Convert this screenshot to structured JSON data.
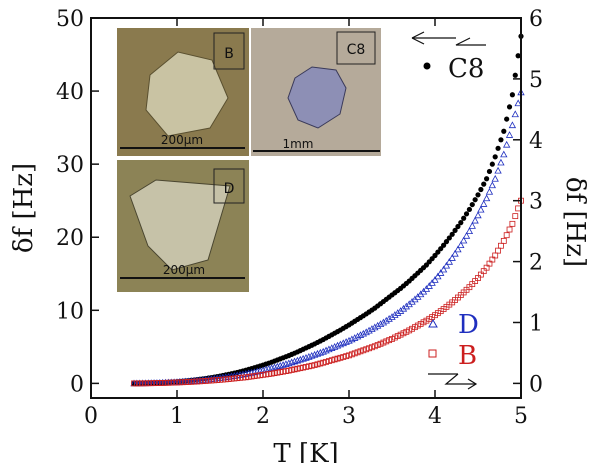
{
  "chart_data": {
    "type": "scatter",
    "title": "",
    "xlabel": "T [K]",
    "ylabel_left": "δf [Hz]",
    "ylabel_right": "δf [Hz]",
    "xlim": [
      0,
      5
    ],
    "ylim_left": [
      -2,
      50
    ],
    "ylim_right": [
      -0.24,
      6
    ],
    "xticks": [
      "0",
      "1",
      "2",
      "3",
      "4",
      "5"
    ],
    "yticks_left": [
      "0",
      "10",
      "20",
      "30",
      "40",
      "50"
    ],
    "yticks_right": [
      "0",
      "1",
      "2",
      "3",
      "4",
      "5",
      "6"
    ],
    "grid": false,
    "legend": [
      {
        "name": "C8",
        "color": "#000000",
        "marker": "circle",
        "axis": "left"
      },
      {
        "name": "D",
        "color": "#1f2fbf",
        "marker": "triangle",
        "axis": "right"
      },
      {
        "name": "B",
        "color": "#cc1f1f",
        "marker": "square",
        "axis": "right"
      }
    ],
    "series": [
      {
        "name": "C8",
        "axis": "left",
        "color": "#000000",
        "marker": "circle",
        "points": [
          [
            0.5,
            0.0
          ],
          [
            0.6,
            0.02
          ],
          [
            0.7,
            0.05
          ],
          [
            0.8,
            0.1
          ],
          [
            0.9,
            0.16
          ],
          [
            1.0,
            0.24
          ],
          [
            1.1,
            0.34
          ],
          [
            1.2,
            0.47
          ],
          [
            1.3,
            0.62
          ],
          [
            1.4,
            0.8
          ],
          [
            1.5,
            1.0
          ],
          [
            1.6,
            1.24
          ],
          [
            1.7,
            1.5
          ],
          [
            1.8,
            1.8
          ],
          [
            1.9,
            2.14
          ],
          [
            2.0,
            2.5
          ],
          [
            2.1,
            2.9
          ],
          [
            2.2,
            3.35
          ],
          [
            2.3,
            3.8
          ],
          [
            2.4,
            4.3
          ],
          [
            2.5,
            4.85
          ],
          [
            2.6,
            5.4
          ],
          [
            2.7,
            6.0
          ],
          [
            2.8,
            6.65
          ],
          [
            2.9,
            7.3
          ],
          [
            3.0,
            8.0
          ],
          [
            3.1,
            8.75
          ],
          [
            3.2,
            9.5
          ],
          [
            3.3,
            10.3
          ],
          [
            3.4,
            11.2
          ],
          [
            3.5,
            12.1
          ],
          [
            3.6,
            13.0
          ],
          [
            3.7,
            14.0
          ],
          [
            3.8,
            15.1
          ],
          [
            3.9,
            16.2
          ],
          [
            4.0,
            17.5
          ],
          [
            4.1,
            18.9
          ],
          [
            4.2,
            20.4
          ],
          [
            4.3,
            22.0
          ],
          [
            4.4,
            23.8
          ],
          [
            4.5,
            25.8
          ],
          [
            4.6,
            28.0
          ],
          [
            4.7,
            31.0
          ],
          [
            4.8,
            34.5
          ],
          [
            4.9,
            39.5
          ],
          [
            5.0,
            47.5
          ]
        ]
      },
      {
        "name": "D",
        "axis": "right",
        "color": "#1f2fbf",
        "marker": "triangle",
        "points": [
          [
            0.5,
            0.0
          ],
          [
            0.6,
            0.002
          ],
          [
            0.7,
            0.005
          ],
          [
            0.8,
            0.009
          ],
          [
            0.9,
            0.015
          ],
          [
            1.0,
            0.022
          ],
          [
            1.1,
            0.031
          ],
          [
            1.2,
            0.042
          ],
          [
            1.3,
            0.055
          ],
          [
            1.4,
            0.07
          ],
          [
            1.5,
            0.088
          ],
          [
            1.6,
            0.108
          ],
          [
            1.7,
            0.13
          ],
          [
            1.8,
            0.155
          ],
          [
            1.9,
            0.183
          ],
          [
            2.0,
            0.215
          ],
          [
            2.1,
            0.25
          ],
          [
            2.2,
            0.29
          ],
          [
            2.3,
            0.33
          ],
          [
            2.4,
            0.375
          ],
          [
            2.5,
            0.42
          ],
          [
            2.6,
            0.47
          ],
          [
            2.7,
            0.52
          ],
          [
            2.8,
            0.58
          ],
          [
            2.9,
            0.64
          ],
          [
            3.0,
            0.7
          ],
          [
            3.1,
            0.77
          ],
          [
            3.2,
            0.84
          ],
          [
            3.3,
            0.92
          ],
          [
            3.4,
            1.0
          ],
          [
            3.5,
            1.09
          ],
          [
            3.6,
            1.19
          ],
          [
            3.7,
            1.3
          ],
          [
            3.8,
            1.42
          ],
          [
            3.9,
            1.55
          ],
          [
            4.0,
            1.7
          ],
          [
            4.1,
            1.87
          ],
          [
            4.2,
            2.06
          ],
          [
            4.3,
            2.27
          ],
          [
            4.4,
            2.5
          ],
          [
            4.5,
            2.76
          ],
          [
            4.6,
            3.04
          ],
          [
            4.7,
            3.36
          ],
          [
            4.8,
            3.76
          ],
          [
            4.9,
            4.24
          ],
          [
            5.0,
            4.78
          ]
        ]
      },
      {
        "name": "B",
        "axis": "right",
        "color": "#cc1f1f",
        "marker": "square",
        "points": [
          [
            0.5,
            0.0
          ],
          [
            0.6,
            0.001
          ],
          [
            0.7,
            0.003
          ],
          [
            0.8,
            0.006
          ],
          [
            0.9,
            0.01
          ],
          [
            1.0,
            0.015
          ],
          [
            1.1,
            0.021
          ],
          [
            1.2,
            0.028
          ],
          [
            1.3,
            0.037
          ],
          [
            1.4,
            0.047
          ],
          [
            1.5,
            0.058
          ],
          [
            1.6,
            0.071
          ],
          [
            1.7,
            0.086
          ],
          [
            1.8,
            0.1
          ],
          [
            1.9,
            0.12
          ],
          [
            2.0,
            0.14
          ],
          [
            2.1,
            0.16
          ],
          [
            2.2,
            0.185
          ],
          [
            2.3,
            0.21
          ],
          [
            2.4,
            0.24
          ],
          [
            2.5,
            0.27
          ],
          [
            2.6,
            0.3
          ],
          [
            2.7,
            0.34
          ],
          [
            2.8,
            0.38
          ],
          [
            2.9,
            0.42
          ],
          [
            3.0,
            0.46
          ],
          [
            3.1,
            0.51
          ],
          [
            3.2,
            0.56
          ],
          [
            3.3,
            0.61
          ],
          [
            3.4,
            0.67
          ],
          [
            3.5,
            0.73
          ],
          [
            3.6,
            0.8
          ],
          [
            3.7,
            0.87
          ],
          [
            3.8,
            0.95
          ],
          [
            3.9,
            1.03
          ],
          [
            4.0,
            1.12
          ],
          [
            4.1,
            1.22
          ],
          [
            4.2,
            1.33
          ],
          [
            4.3,
            1.45
          ],
          [
            4.4,
            1.58
          ],
          [
            4.5,
            1.73
          ],
          [
            4.6,
            1.9
          ],
          [
            4.7,
            2.1
          ],
          [
            4.8,
            2.34
          ],
          [
            4.9,
            2.62
          ],
          [
            5.0,
            3.0
          ]
        ]
      }
    ],
    "annotations": {
      "left_axis_arrow": "points left, indicates C8 uses left axis",
      "right_axis_arrow": "points right, indicates D and B use right axis"
    },
    "inset_photos": [
      {
        "label": "B",
        "scale_bar": "200μm",
        "tone": "#8a7a4e"
      },
      {
        "label": "C8",
        "scale_bar": "1mm",
        "tone": "#b5aa9a"
      },
      {
        "label": "D",
        "scale_bar": "200μm",
        "tone": "#8c8356"
      }
    ]
  }
}
